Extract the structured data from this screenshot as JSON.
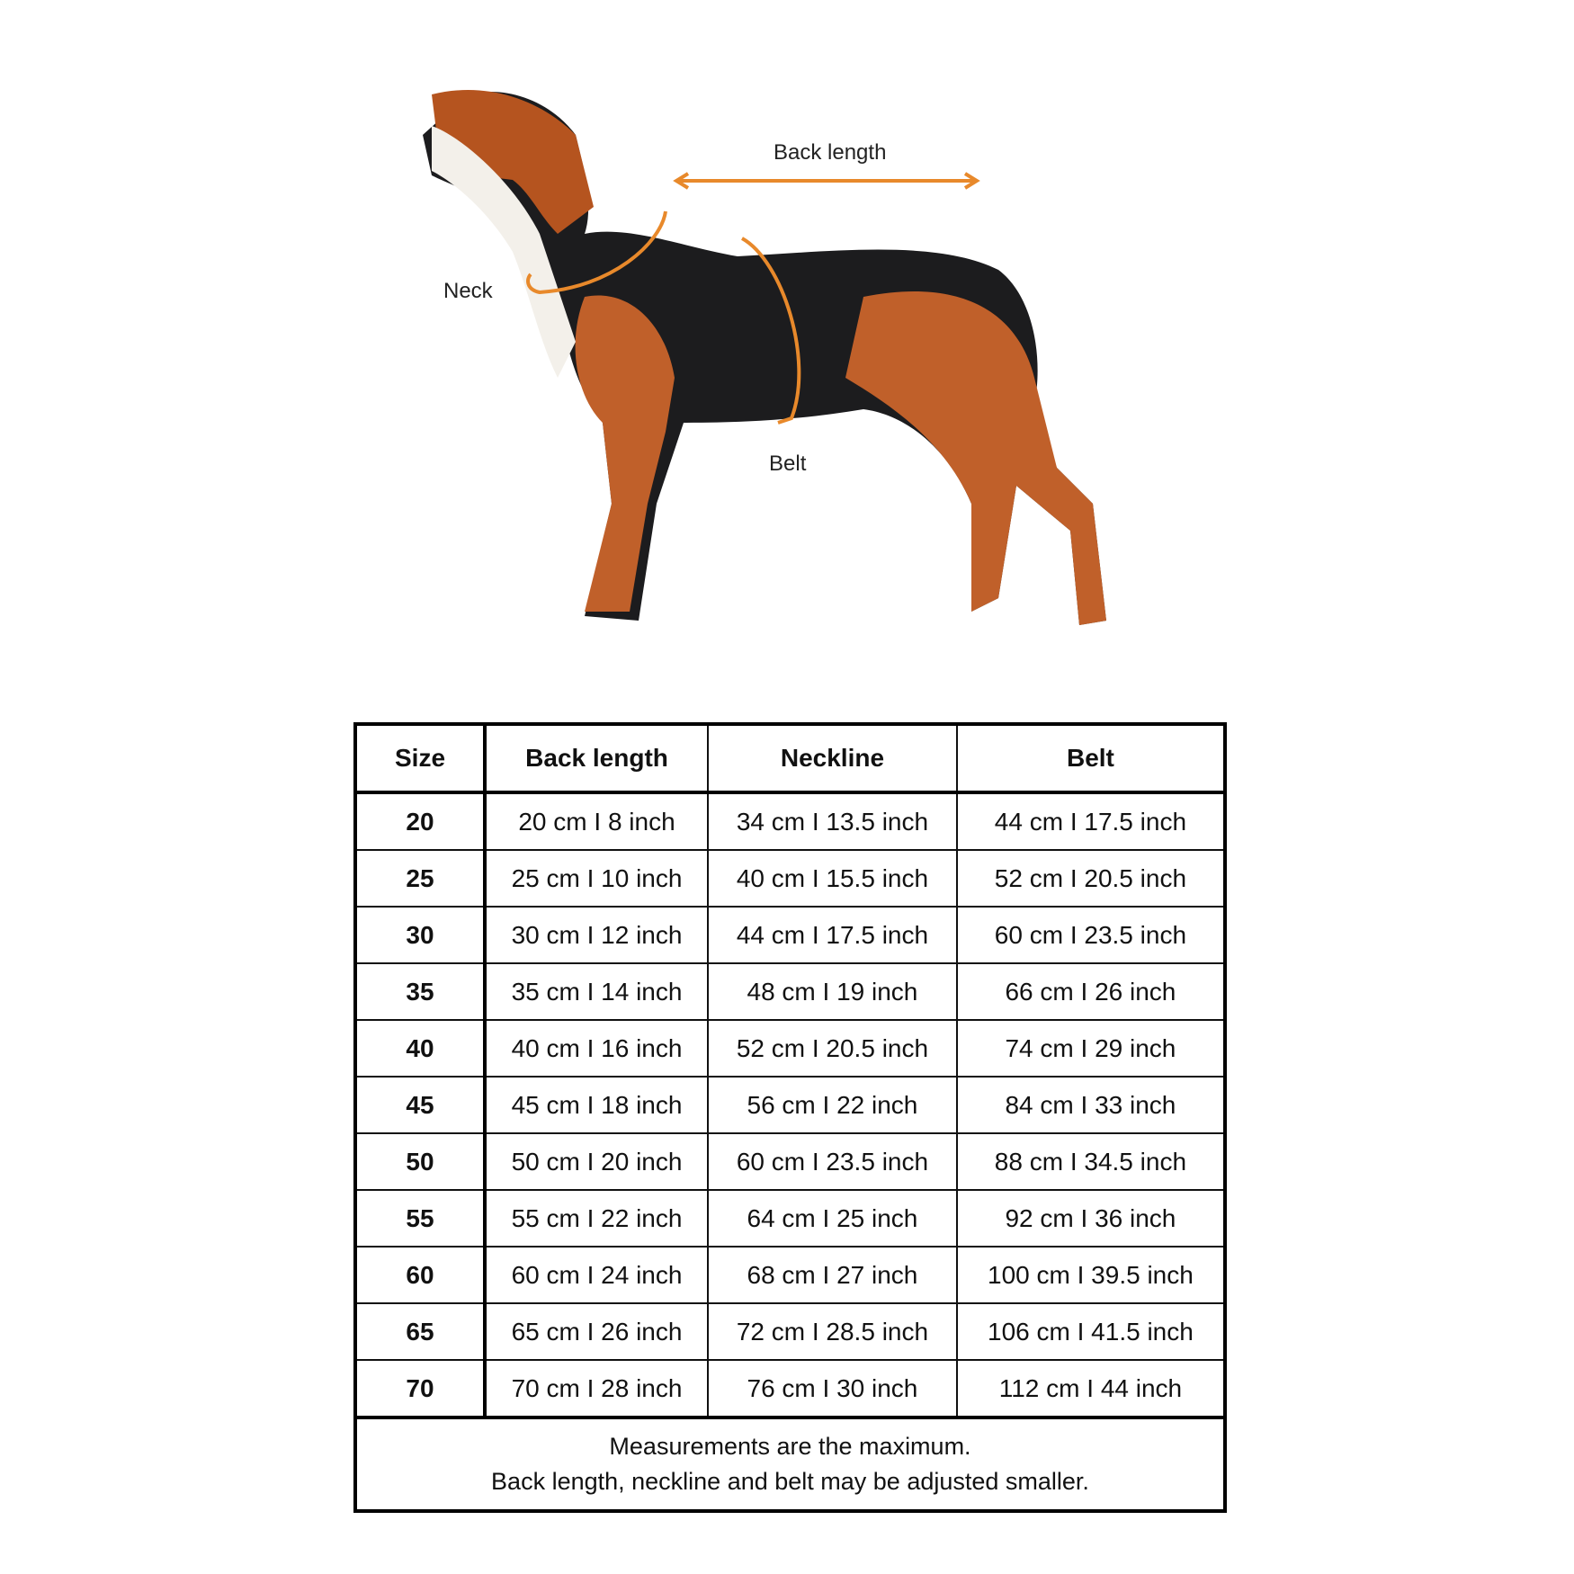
{
  "diagram": {
    "labels": {
      "back_length": "Back length",
      "neck": "Neck",
      "belt": "Belt"
    },
    "arrow_color": "#E8892B"
  },
  "table": {
    "headers": [
      "Size",
      "Back length",
      "Neckline",
      "Belt"
    ],
    "rows": [
      [
        "20",
        "20 cm I 8 inch",
        "34 cm I 13.5 inch",
        "44 cm I 17.5 inch"
      ],
      [
        "25",
        "25 cm I 10 inch",
        "40 cm I 15.5 inch",
        "52 cm I 20.5 inch"
      ],
      [
        "30",
        "30 cm I 12 inch",
        "44 cm I 17.5 inch",
        "60 cm I 23.5 inch"
      ],
      [
        "35",
        "35 cm I 14 inch",
        "48 cm I 19 inch",
        "66 cm I 26 inch"
      ],
      [
        "40",
        "40 cm I 16 inch",
        "52 cm I 20.5 inch",
        "74 cm I 29 inch"
      ],
      [
        "45",
        "45 cm I 18 inch",
        "56 cm I 22 inch",
        "84 cm I 33 inch"
      ],
      [
        "50",
        "50 cm I 20 inch",
        "60 cm I 23.5 inch",
        "88 cm I 34.5 inch"
      ],
      [
        "55",
        "55 cm I 22 inch",
        "64 cm I 25 inch",
        "92 cm I 36 inch"
      ],
      [
        "60",
        "60 cm I 24 inch",
        "68 cm I 27 inch",
        "100 cm I 39.5 inch"
      ],
      [
        "65",
        "65 cm I 26 inch",
        "72 cm I 28.5 inch",
        "106 cm I 41.5 inch"
      ],
      [
        "70",
        "70 cm I 28 inch",
        "76 cm I 30 inch",
        "112 cm I 44 inch"
      ]
    ],
    "footer": [
      "Measurements are the maximum.",
      "Back length, neckline and belt may be adjusted smaller."
    ]
  }
}
